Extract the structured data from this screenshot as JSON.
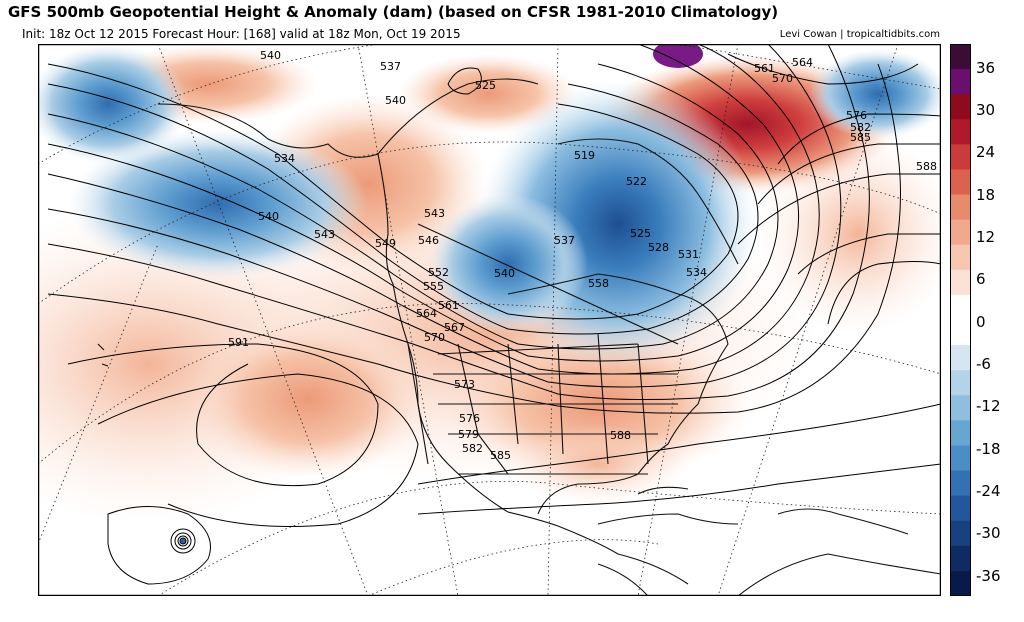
{
  "header": {
    "title": "GFS 500mb Geopotential Height & Anomaly (dam) (based on CFSR 1981-2010 Climatology)",
    "subtitle": "Init: 18z Oct 12 2015   Forecast Hour: [168]   valid at 18z Mon, Oct 19 2015",
    "credit": "Levi Cowan | tropicaltidbits.com"
  },
  "colorbar": {
    "labels": [
      "36",
      "30",
      "24",
      "18",
      "12",
      "6",
      "0",
      "-6",
      "-12",
      "-18",
      "-24",
      "-30",
      "-36"
    ],
    "colors": [
      "#3b0c35",
      "#6b0f6e",
      "#8e0a1c",
      "#b0182b",
      "#cc3b3c",
      "#dc6250",
      "#e88a6c",
      "#f0a98c",
      "#f7c8b0",
      "#fce2d4",
      "#ffffff",
      "#ffffff",
      "#d4e6f2",
      "#b3d3e9",
      "#8fbfdf",
      "#68a6d2",
      "#4a8ec5",
      "#3272b2",
      "#22579b",
      "#17417f",
      "#0e2c63",
      "#081a48"
    ]
  },
  "map": {
    "contour_labels": [
      "540",
      "537",
      "540",
      "525",
      "534",
      "540",
      "543",
      "519",
      "522",
      "525",
      "528",
      "531",
      "534",
      "537",
      "540",
      "543",
      "546",
      "549",
      "552",
      "555",
      "558",
      "561",
      "564",
      "567",
      "570",
      "573",
      "576",
      "579",
      "582",
      "585",
      "588",
      "591",
      "561",
      "564",
      "570",
      "576",
      "582",
      "585",
      "588"
    ]
  }
}
